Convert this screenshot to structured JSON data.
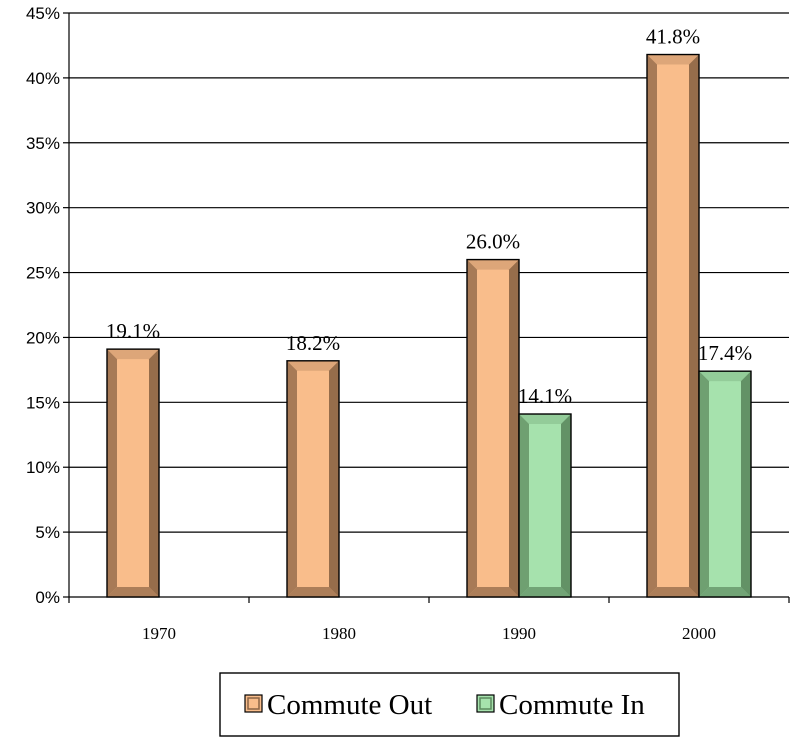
{
  "chart_data": {
    "type": "bar",
    "categories": [
      "1970",
      "1980",
      "1990",
      "2000"
    ],
    "series": [
      {
        "name": "Commute Out",
        "values": [
          19.1,
          18.2,
          26.0,
          41.8
        ],
        "labels": [
          "19.1%",
          "18.2%",
          "26.0%",
          "41.8%"
        ],
        "color": "#F9BD8B",
        "shade": "#8B6444"
      },
      {
        "name": "Commute In",
        "values": [
          null,
          null,
          14.1,
          17.4
        ],
        "labels": [
          "",
          "",
          "14.1%",
          "17.4%"
        ],
        "color": "#A6E2AD",
        "shade": "#5C8A5E"
      }
    ],
    "ylim": [
      0,
      45
    ],
    "yticks": [
      "0%",
      "5%",
      "10%",
      "15%",
      "20%",
      "25%",
      "30%",
      "35%",
      "40%",
      "45%"
    ],
    "grid": true,
    "legend_position": "bottom"
  }
}
